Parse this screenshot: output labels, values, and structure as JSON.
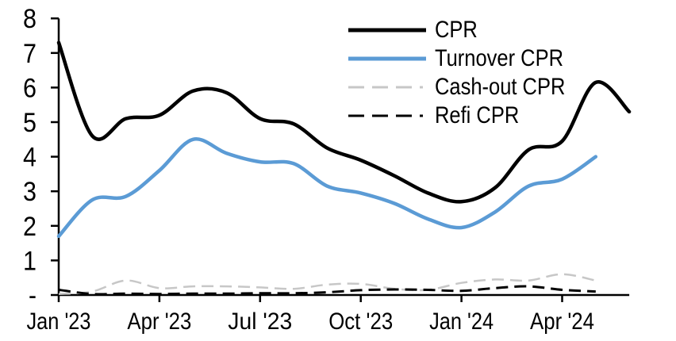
{
  "figure": {
    "background": "#FFFFFF",
    "axis_color": "#000000"
  },
  "chart_data": {
    "type": "line",
    "title": "",
    "xlabel": "",
    "ylabel": "",
    "grid": false,
    "legend_position": "top-right-inside",
    "ylim": [
      0,
      8
    ],
    "y_ticks": [
      0,
      1,
      2,
      3,
      4,
      5,
      6,
      7,
      8
    ],
    "y_tick_labels": [
      "-",
      "1",
      "2",
      "3",
      "4",
      "5",
      "6",
      "7",
      "8"
    ],
    "x": [
      "Jan '23",
      "Feb '23",
      "Mar '23",
      "Apr '23",
      "May '23",
      "Jun '23",
      "Jul '23",
      "Aug '23",
      "Sep '23",
      "Oct '23",
      "Nov '23",
      "Dec '23",
      "Jan '24",
      "Feb '24",
      "Mar '24",
      "Apr '24",
      "May '24",
      "Jun '24"
    ],
    "x_tick_indices": [
      0,
      3,
      6,
      9,
      12,
      15
    ],
    "x_tick_labels": [
      "Jan '23",
      "Apr '23",
      "Jul '23",
      "Oct '23",
      "Jan '24",
      "Apr '24"
    ],
    "series": [
      {
        "name": "CPR",
        "color": "#000000",
        "style": "solid",
        "width": 4.5,
        "values": [
          7.3,
          4.6,
          5.1,
          5.2,
          5.9,
          5.85,
          5.1,
          4.95,
          4.25,
          3.9,
          3.45,
          2.95,
          2.7,
          3.1,
          4.2,
          4.45,
          6.15,
          5.3
        ]
      },
      {
        "name": "Turnover CPR",
        "color": "#5B9BD5",
        "style": "solid",
        "width": 4.5,
        "values": [
          1.7,
          2.75,
          2.85,
          3.6,
          4.5,
          4.1,
          3.85,
          3.8,
          3.15,
          2.95,
          2.65,
          2.2,
          1.95,
          2.4,
          3.15,
          3.35,
          4.0,
          null
        ]
      },
      {
        "name": "Cash-out CPR",
        "color": "#C7C7C7",
        "style": "dashed",
        "width": 2.5,
        "values": [
          0.03,
          0.1,
          0.42,
          0.2,
          0.25,
          0.25,
          0.22,
          0.18,
          0.3,
          0.32,
          0.18,
          0.15,
          0.35,
          0.45,
          0.42,
          0.6,
          0.42,
          null
        ]
      },
      {
        "name": "Refi CPR",
        "color": "#000000",
        "style": "dashed",
        "width": 3,
        "values": [
          0.15,
          0.03,
          0.04,
          0.03,
          0.04,
          0.04,
          0.05,
          0.05,
          0.08,
          0.14,
          0.16,
          0.15,
          0.12,
          0.2,
          0.25,
          0.15,
          0.1,
          null
        ]
      }
    ]
  }
}
